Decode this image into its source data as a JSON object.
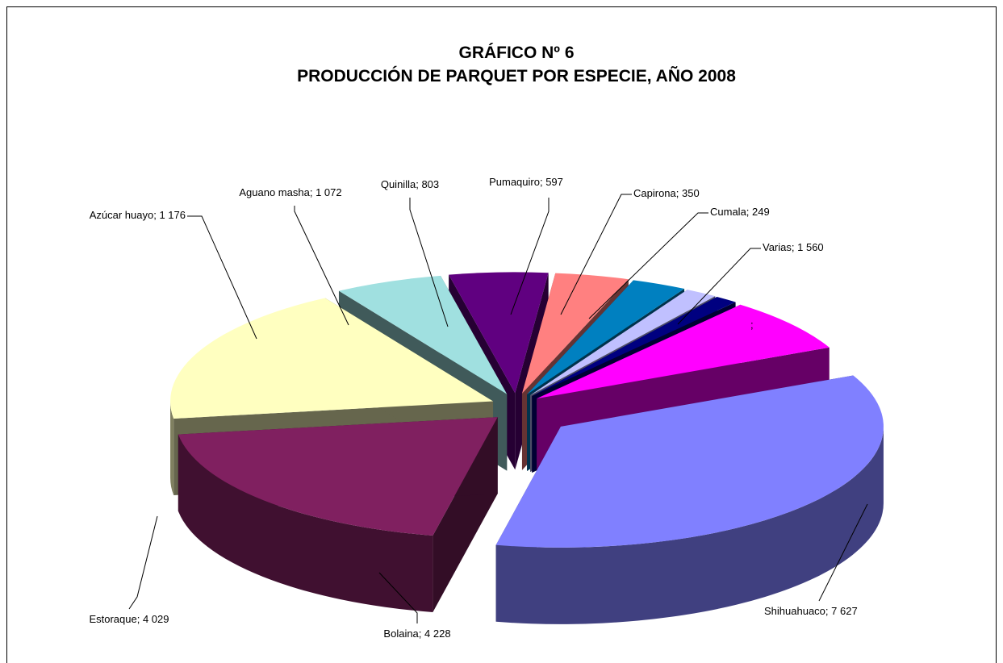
{
  "chart_data": {
    "type": "pie3d",
    "title": "GRÁFICO Nº 6",
    "subtitle": "PRODUCCIÓN DE PARQUET POR ESPECIE, AÑO 2008",
    "label_separator": "; ",
    "categories": [
      "Shihuahuaco",
      "Bolaina",
      "Estoraque",
      "Azúcar huayo",
      "Aguano masha",
      "Quinilla",
      "Pumaquiro",
      "Capirona",
      "Cumala",
      "Varias",
      null
    ],
    "values": [
      7627,
      4228,
      4029,
      1176,
      1072,
      803,
      597,
      350,
      249,
      1560,
      null
    ],
    "value_labels": [
      "7 627",
      "4 228",
      "4 029",
      "1 176",
      "1 072",
      "803",
      "597",
      "350",
      "249",
      "1 560",
      null
    ],
    "colors": [
      "#8080ff",
      "#802060",
      "#ffffc0",
      "#a0e0e0",
      "#600080",
      "#ff8080",
      "#0080c0",
      "#c0c0ff",
      "#000080",
      "#ff00ff",
      "#008080"
    ]
  }
}
